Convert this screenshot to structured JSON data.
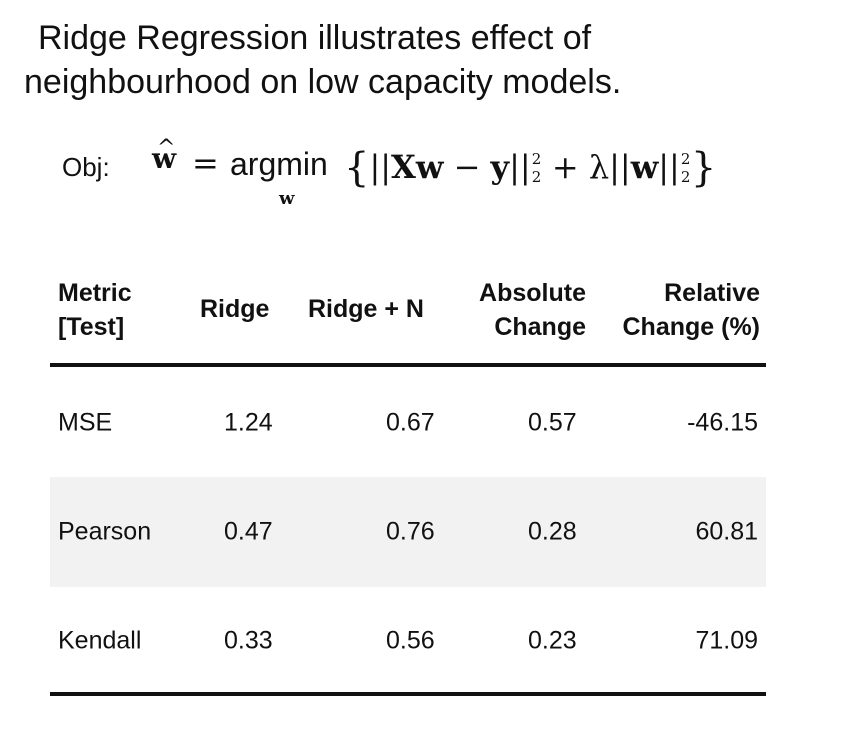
{
  "title": {
    "line1": "Ridge Regression illustrates effect of",
    "line2": "neighbourhood on low capacity models."
  },
  "formula": {
    "label": "Obj:",
    "lhs": "w",
    "hat": "^",
    "equals": "=",
    "operator": "argmin",
    "operator_subscript": "w",
    "open_brace": "{",
    "norm_open": "||",
    "term1": "Xw",
    "minus": "−",
    "term2": "y",
    "norm_close": "||",
    "exp": "2",
    "sub": "2",
    "plus": "+",
    "lambda": "λ",
    "term3": "w",
    "close_brace": "}"
  },
  "table": {
    "headers": {
      "metric_line1": "Metric",
      "metric_line2": "[Test]",
      "ridge": "Ridge",
      "ridge_n": "Ridge + N",
      "abs_line1": "Absolute",
      "abs_line2": "Change",
      "rel_line1": "Relative",
      "rel_line2": "Change (%)"
    },
    "rows": [
      {
        "metric": "MSE",
        "ridge": "1.24",
        "ridge_n": "0.67",
        "abs": "0.57",
        "rel": "-46.15"
      },
      {
        "metric": "Pearson",
        "ridge": "0.47",
        "ridge_n": "0.76",
        "abs": "0.28",
        "rel": "60.81"
      },
      {
        "metric": "Kendall",
        "ridge": "0.33",
        "ridge_n": "0.56",
        "abs": "0.23",
        "rel": "71.09"
      }
    ]
  },
  "colors": {
    "text": "#111111",
    "row_shade": "#f2f2f2",
    "rule": "#111111"
  }
}
